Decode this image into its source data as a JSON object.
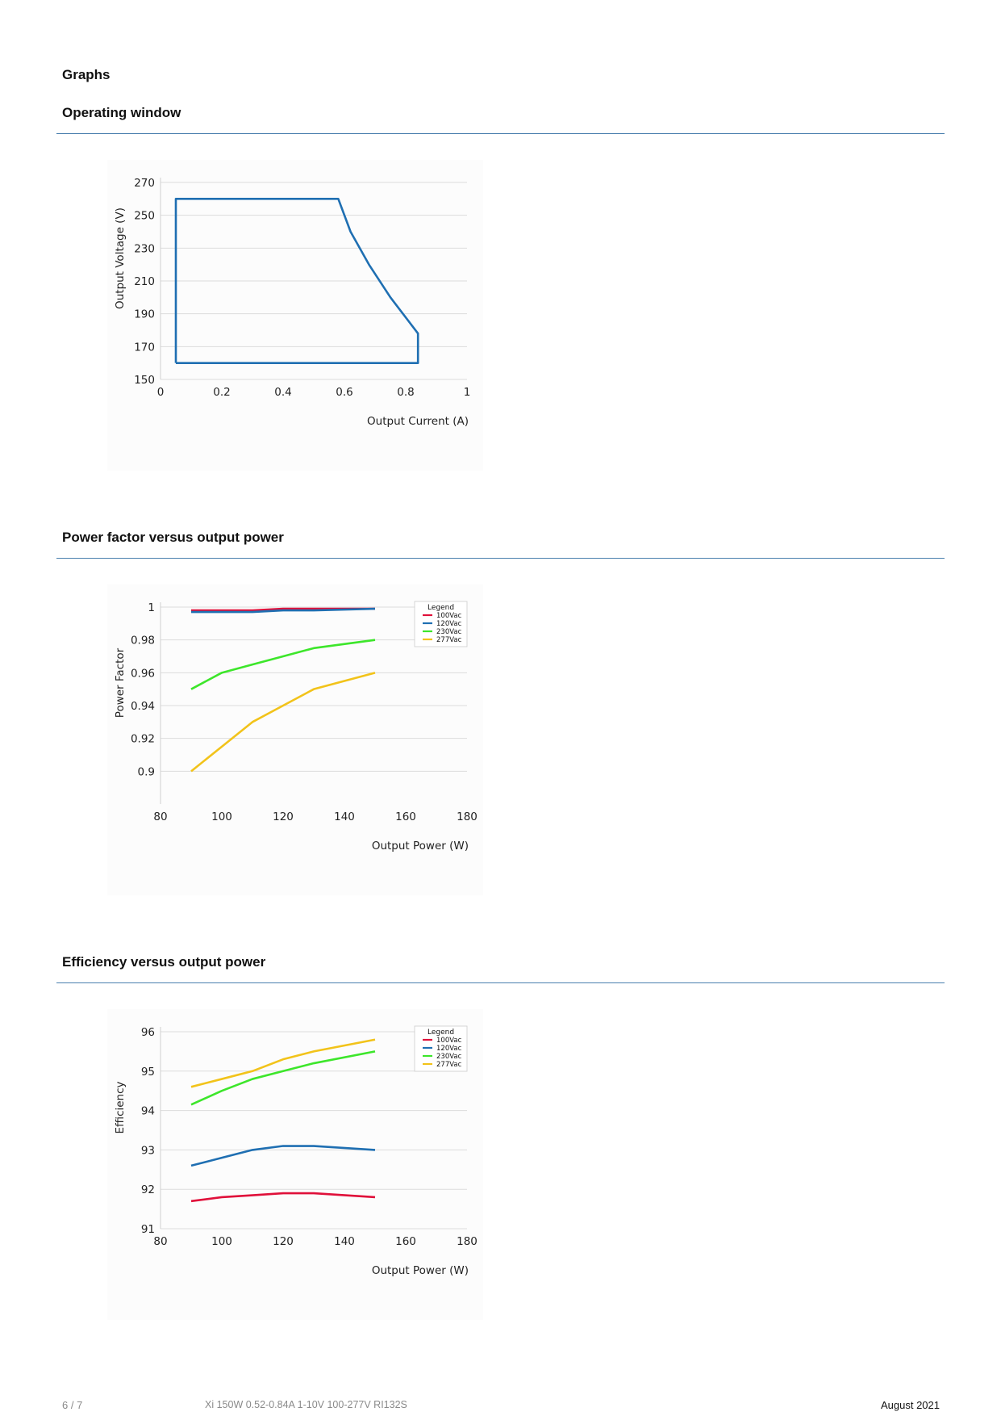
{
  "heading": "Graphs",
  "sections": [
    {
      "title": "Operating window"
    },
    {
      "title": "Power factor versus output power"
    },
    {
      "title": "Efficiency versus output power"
    }
  ],
  "footer": {
    "page": "6 / 7",
    "product": "Xi 150W 0.52-0.84A 1-10V 100-277V RI132S",
    "date": "August 2021"
  },
  "chart_data": [
    {
      "type": "line",
      "title": "Operating window",
      "xlabel": "Output Current (A)",
      "ylabel": "Output Voltage (V)",
      "xlim": [
        0,
        1
      ],
      "ylim": [
        150,
        270
      ],
      "xticks": [
        "0",
        "0.2",
        "0.4",
        "0.6",
        "0.8",
        "1"
      ],
      "yticks": [
        "150",
        "170",
        "190",
        "210",
        "230",
        "250",
        "270"
      ],
      "grid": "horizontal",
      "series": [
        {
          "color": "#1f6fb2",
          "points": [
            [
              0.05,
              160
            ],
            [
              0.05,
              260
            ],
            [
              0.58,
              260
            ],
            [
              0.62,
              240
            ],
            [
              0.68,
              220
            ],
            [
              0.75,
              200
            ],
            [
              0.84,
              178
            ],
            [
              0.84,
              160
            ],
            [
              0.05,
              160
            ]
          ]
        }
      ]
    },
    {
      "type": "line",
      "title": "Power factor versus output power",
      "xlabel": "Output Power (W)",
      "ylabel": "Power Factor",
      "xlim": [
        80,
        180
      ],
      "ylim": [
        0.88,
        1.0
      ],
      "xticks": [
        "80",
        "100",
        "120",
        "140",
        "160",
        "180"
      ],
      "yticks": [
        "0.9",
        "0.92",
        "0.94",
        "0.96",
        "0.98",
        "1"
      ],
      "grid": "horizontal",
      "legend": {
        "title": "Legend",
        "placement": "top-right"
      },
      "x": [
        90,
        100,
        110,
        120,
        130,
        150
      ],
      "series": [
        {
          "name": "100Vac",
          "color": "#e0103a",
          "values": [
            0.998,
            0.998,
            0.998,
            0.999,
            0.999,
            0.999
          ]
        },
        {
          "name": "120Vac",
          "color": "#1f6fb2",
          "values": [
            0.997,
            0.997,
            0.997,
            0.998,
            0.998,
            0.999
          ]
        },
        {
          "name": "230Vac",
          "color": "#3de62b",
          "values": [
            0.95,
            0.96,
            0.965,
            0.97,
            0.975,
            0.98
          ]
        },
        {
          "name": "277Vac",
          "color": "#f2c31a",
          "values": [
            0.9,
            0.915,
            0.93,
            0.94,
            0.95,
            0.96
          ]
        }
      ]
    },
    {
      "type": "line",
      "title": "Efficiency versus output power",
      "xlabel": "Output Power (W)",
      "ylabel": "Efficiency",
      "xlim": [
        80,
        180
      ],
      "ylim": [
        91,
        96
      ],
      "xticks": [
        "80",
        "100",
        "120",
        "140",
        "160",
        "180"
      ],
      "yticks": [
        "91",
        "92",
        "93",
        "94",
        "95",
        "96"
      ],
      "grid": "horizontal",
      "legend": {
        "title": "Legend",
        "placement": "top-right"
      },
      "x": [
        90,
        100,
        110,
        120,
        130,
        150
      ],
      "legend_entries": [
        {
          "name": "100Vac",
          "color": "#e0103a"
        },
        {
          "name": "120Vac",
          "color": "#1f6fb2"
        },
        {
          "name": "230Vac",
          "color": "#3de62b"
        },
        {
          "name": "277Vac",
          "color": "#f2c31a"
        }
      ],
      "series": [
        {
          "color": "#e0103a",
          "values": [
            91.7,
            91.8,
            91.85,
            91.9,
            91.9,
            91.8
          ]
        },
        {
          "color": "#1f6fb2",
          "values": [
            92.6,
            92.8,
            93.0,
            93.1,
            93.1,
            93.0
          ]
        },
        {
          "color": "#3de62b",
          "values": [
            94.15,
            94.5,
            94.8,
            95.0,
            95.2,
            95.5
          ]
        },
        {
          "color": "#f2c31a",
          "values": [
            94.6,
            94.8,
            95.0,
            95.3,
            95.5,
            95.8
          ]
        }
      ]
    }
  ]
}
